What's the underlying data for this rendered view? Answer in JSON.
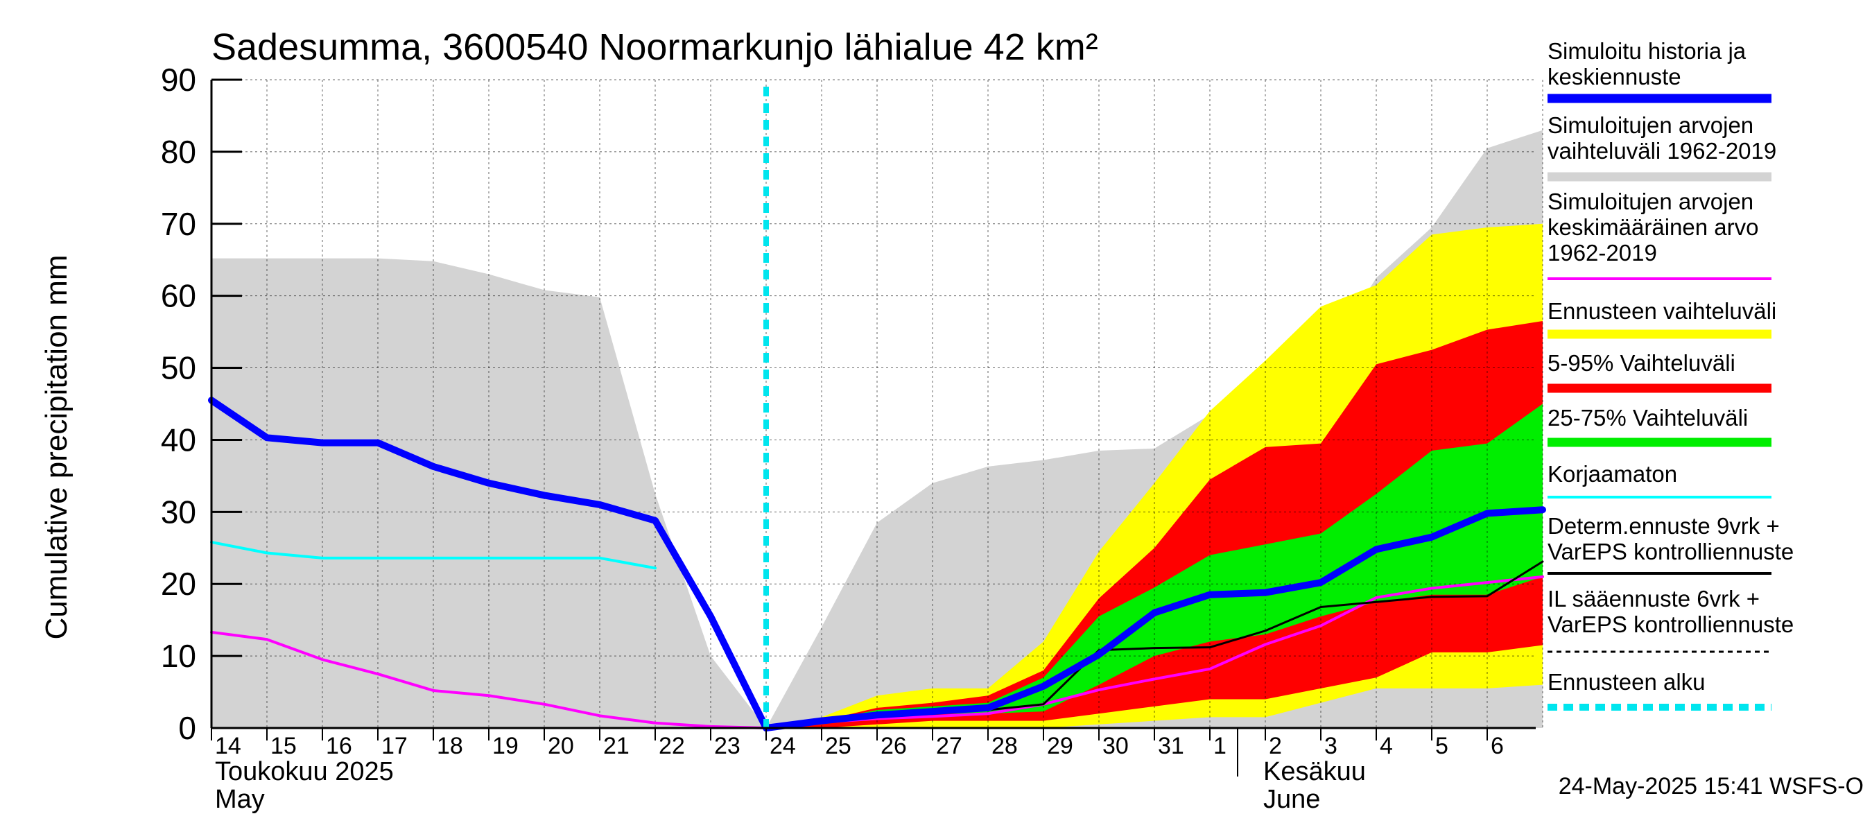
{
  "chart_data": {
    "type": "area",
    "title": "Sadesumma, 3600540 Noormarkunjo lähialue 42 km²",
    "ylabel": "Cumulative precipitation   mm",
    "ylim": [
      0,
      90
    ],
    "yticks": [
      0,
      10,
      20,
      30,
      40,
      50,
      60,
      70,
      80,
      90
    ],
    "x_start": "2025-05-14",
    "x_end": "2025-06-07",
    "xticklabels": [
      "14",
      "15",
      "16",
      "17",
      "18",
      "19",
      "20",
      "21",
      "22",
      "23",
      "24",
      "25",
      "26",
      "27",
      "28",
      "29",
      "30",
      "31",
      "1",
      "2",
      "3",
      "4",
      "5",
      "6"
    ],
    "month_labels": [
      {
        "top": "Toukokuu  2025",
        "bottom": "May",
        "day": 14
      },
      {
        "top": "Kesäkuu",
        "bottom": "June",
        "day": 32.9
      }
    ],
    "forecast_start_day": 24,
    "timestamp": "24-May-2025 15:41 WSFS-O",
    "grid": true,
    "legend_position": "right",
    "colors": {
      "simulated": "#0000ff",
      "hist_range": "#d3d3d3",
      "hist_mean": "#ff00ff",
      "ens_range": "#ffff00",
      "p5_95": "#ff0000",
      "p25_75": "#00ee00",
      "uncorrected": "#00ffff",
      "determ": "#000000",
      "forecast_start": "#00e5ee"
    },
    "legend": [
      {
        "key": "simulated",
        "label": "Simuloitu historia ja\nkeskiennuste",
        "style": "thick"
      },
      {
        "key": "hist_range",
        "label": "Simuloitujen arvojen\nvaihteluväli 1962-2019",
        "style": "thick"
      },
      {
        "key": "hist_mean",
        "label": "Simuloitujen arvojen\nkeskimääräinen arvo\n   1962-2019",
        "style": "thin"
      },
      {
        "key": "ens_range",
        "label": "Ennusteen vaihteluväli",
        "style": "thick"
      },
      {
        "key": "p5_95",
        "label": "5-95% Vaihteluväli",
        "style": "thick"
      },
      {
        "key": "p25_75",
        "label": "25-75% Vaihteluväli",
        "style": "thick"
      },
      {
        "key": "uncorrected",
        "label": "Korjaamaton",
        "style": "thin"
      },
      {
        "key": "determ",
        "label": "Determ.ennuste 9vrk +\nVarEPS kontrolliennuste",
        "style": "thin"
      },
      {
        "key": "il",
        "label": "IL sääennuste 6vrk  +\n  VarEPS kontrolliennuste",
        "style": "dashed"
      },
      {
        "key": "forecast_start",
        "label": "Ennusteen alku",
        "style": "dotted"
      }
    ],
    "series": [
      {
        "name": "Simuloitu historia ja keskiennuste",
        "key": "simulated",
        "x": [
          14,
          15,
          16,
          17,
          18,
          19,
          20,
          21,
          22,
          23,
          24,
          25,
          26,
          27,
          28,
          29,
          30,
          31,
          32,
          33,
          34,
          35,
          36,
          37,
          38
        ],
        "y": [
          45.5,
          40.3,
          39.6,
          39.6,
          36.3,
          34,
          32.3,
          31,
          28.8,
          15.5,
          0,
          1,
          1.8,
          2.3,
          2.8,
          5.8,
          10.2,
          16,
          18.5,
          18.8,
          20.2,
          24.8,
          26.5,
          29.8,
          30.3
        ]
      },
      {
        "name": "Korjaamaton",
        "key": "uncorrected",
        "x": [
          14,
          15,
          16,
          17,
          18,
          19,
          20,
          21,
          22
        ],
        "y": [
          25.8,
          24.3,
          23.6,
          23.6,
          23.6,
          23.6,
          23.6,
          23.6,
          22.2
        ]
      },
      {
        "name": "Simuloitujen arvojen keskimääräinen arvo 1962-2019",
        "key": "hist_mean",
        "x": [
          14,
          15,
          16,
          17,
          18,
          19,
          20,
          21,
          22,
          23,
          24,
          25,
          26,
          27,
          28,
          29,
          30,
          31,
          32,
          33,
          34,
          35,
          36,
          37,
          38
        ],
        "y": [
          13.3,
          12.3,
          9.5,
          7.5,
          5.2,
          4.5,
          3.3,
          1.7,
          0.7,
          0.2,
          0,
          0.8,
          1.3,
          1.6,
          2,
          3.3,
          5.3,
          6.8,
          8.2,
          11.6,
          14.2,
          18.1,
          19.4,
          20.2,
          21
        ]
      },
      {
        "name": "Determ.ennuste 9vrk + VarEPS kontrolliennuste",
        "key": "determ",
        "x": [
          24,
          25,
          26,
          27,
          28,
          29,
          30,
          31,
          32,
          33,
          34,
          35,
          36,
          37,
          38
        ],
        "y": [
          0,
          1,
          1.8,
          2.3,
          2.5,
          3.3,
          10.8,
          11.1,
          11.2,
          13.5,
          16.8,
          17.5,
          18.2,
          18.3,
          23.1
        ]
      },
      {
        "name": "Simuloitujen arvojen vaihteluväli 1962-2019",
        "key": "hist_range",
        "x": [
          14,
          15,
          16,
          17,
          18,
          19,
          20,
          21,
          22,
          23,
          24,
          25,
          26,
          27,
          28,
          29,
          30,
          31,
          32,
          33,
          34,
          35,
          36,
          37,
          38
        ],
        "lower": [
          0,
          0,
          0,
          0,
          0,
          0,
          0,
          0,
          0,
          0,
          0,
          0,
          0,
          0,
          0,
          0,
          0,
          0,
          0,
          0,
          0,
          0,
          0,
          0,
          0
        ],
        "upper": [
          65.2,
          65.2,
          65.2,
          65.2,
          64.8,
          63,
          60.8,
          59.8,
          32.5,
          10,
          0,
          14,
          28.5,
          34,
          36.3,
          37.2,
          38.5,
          38.8,
          43.5,
          50.3,
          50.3,
          62.5,
          69.5,
          80.5,
          83
        ]
      },
      {
        "name": "Ennusteen vaihteluväli",
        "key": "ens_range",
        "x": [
          24,
          25,
          26,
          27,
          28,
          29,
          30,
          31,
          32,
          33,
          34,
          35,
          36,
          37,
          38
        ],
        "lower": [
          0,
          0,
          0,
          0,
          0,
          0,
          0.5,
          1,
          1.5,
          1.5,
          3.5,
          5.5,
          5.5,
          5.5,
          6
        ],
        "upper": [
          0,
          1.5,
          4.5,
          5.5,
          5.5,
          12,
          24.5,
          34,
          44,
          51,
          58.5,
          61.5,
          68.5,
          69.5,
          70
        ]
      },
      {
        "name": "5-95% Vaihteluväli",
        "key": "p5_95",
        "x": [
          24,
          25,
          26,
          27,
          28,
          29,
          30,
          31,
          32,
          33,
          34,
          35,
          36,
          37,
          38
        ],
        "lower": [
          0,
          0,
          0.5,
          1,
          1,
          1,
          2,
          3,
          4,
          4,
          5.5,
          7,
          10.5,
          10.5,
          11.5
        ],
        "upper": [
          0,
          1,
          2.8,
          3.5,
          4.5,
          8,
          18,
          25,
          34.5,
          39,
          39.5,
          50.5,
          52.5,
          55.3,
          56.5
        ]
      },
      {
        "name": "25-75% Vaihteluväli",
        "key": "p25_75",
        "x": [
          24,
          25,
          26,
          27,
          28,
          29,
          30,
          31,
          32,
          33,
          34,
          35,
          36,
          37,
          38
        ],
        "lower": [
          0,
          0.5,
          1.5,
          2,
          2,
          2.3,
          6,
          10,
          12,
          13,
          15.5,
          17.5,
          18.5,
          18.5,
          21
        ],
        "upper": [
          0,
          1,
          2.5,
          3,
          3.5,
          7,
          15.5,
          19.5,
          24,
          25.5,
          27,
          32.5,
          38.5,
          39.5,
          45
        ]
      }
    ]
  }
}
